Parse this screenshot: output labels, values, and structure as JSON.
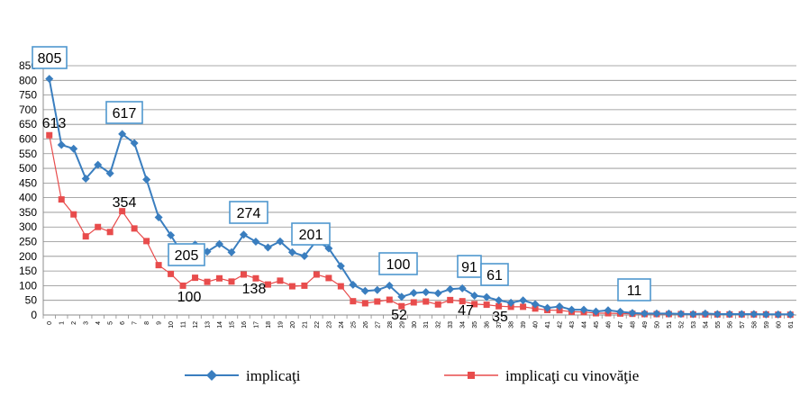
{
  "chart_data": {
    "type": "line",
    "x": [
      0,
      1,
      2,
      3,
      4,
      5,
      6,
      7,
      8,
      9,
      10,
      11,
      12,
      13,
      14,
      15,
      16,
      17,
      18,
      19,
      20,
      21,
      22,
      23,
      24,
      25,
      26,
      27,
      28,
      29,
      30,
      31,
      32,
      33,
      34,
      35,
      36,
      37,
      38,
      39,
      40,
      41,
      42,
      43,
      44,
      45,
      46,
      47,
      48,
      49,
      50,
      51,
      52,
      53,
      54,
      55,
      56,
      57,
      58,
      59,
      60,
      61
    ],
    "ylim": [
      0,
      850
    ],
    "yticks": [
      0,
      50,
      100,
      150,
      200,
      250,
      300,
      350,
      400,
      450,
      500,
      550,
      600,
      650,
      700,
      750,
      800,
      850
    ],
    "grid": true,
    "legend_position": "bottom",
    "series": [
      {
        "name": "implicaţi",
        "color": "#3a7ebf",
        "marker": "diamond",
        "values": [
          805,
          580,
          567,
          465,
          512,
          483,
          617,
          586,
          462,
          333,
          272,
          205,
          240,
          216,
          242,
          214,
          274,
          250,
          230,
          251,
          214,
          201,
          254,
          227,
          167,
          103,
          82,
          85,
          100,
          62,
          75,
          78,
          74,
          88,
          91,
          66,
          61,
          50,
          42,
          50,
          37,
          24,
          29,
          18,
          18,
          12,
          16,
          11,
          7,
          5,
          5,
          5,
          4,
          3,
          5,
          3,
          3,
          3,
          3,
          2,
          2,
          2
        ]
      },
      {
        "name": "implicaţi cu vinovăţie",
        "color": "#e84c4c",
        "marker": "square",
        "values": [
          613,
          394,
          343,
          268,
          300,
          283,
          354,
          295,
          252,
          170,
          140,
          100,
          127,
          113,
          125,
          114,
          138,
          125,
          104,
          117,
          98,
          100,
          138,
          126,
          98,
          47,
          40,
          46,
          52,
          30,
          43,
          46,
          36,
          51,
          47,
          37,
          35,
          30,
          28,
          28,
          22,
          17,
          16,
          11,
          10,
          6,
          6,
          5,
          4,
          3,
          3,
          3,
          3,
          2,
          2,
          2,
          2,
          2,
          2,
          2,
          1,
          1
        ]
      }
    ],
    "annotations": [
      {
        "text": "805",
        "boxed": true
      },
      {
        "text": "613",
        "boxed": false
      },
      {
        "text": "617",
        "boxed": true
      },
      {
        "text": "354",
        "boxed": false
      },
      {
        "text": "205",
        "boxed": true
      },
      {
        "text": "100",
        "boxed": false
      },
      {
        "text": "274",
        "boxed": true
      },
      {
        "text": "138",
        "boxed": false
      },
      {
        "text": "201",
        "boxed": true
      },
      {
        "text": "100",
        "boxed": true
      },
      {
        "text": "52",
        "boxed": false
      },
      {
        "text": "91",
        "boxed": true
      },
      {
        "text": "47",
        "boxed": false
      },
      {
        "text": "61",
        "boxed": true
      },
      {
        "text": "35",
        "boxed": false
      },
      {
        "text": "11",
        "boxed": true
      }
    ]
  }
}
